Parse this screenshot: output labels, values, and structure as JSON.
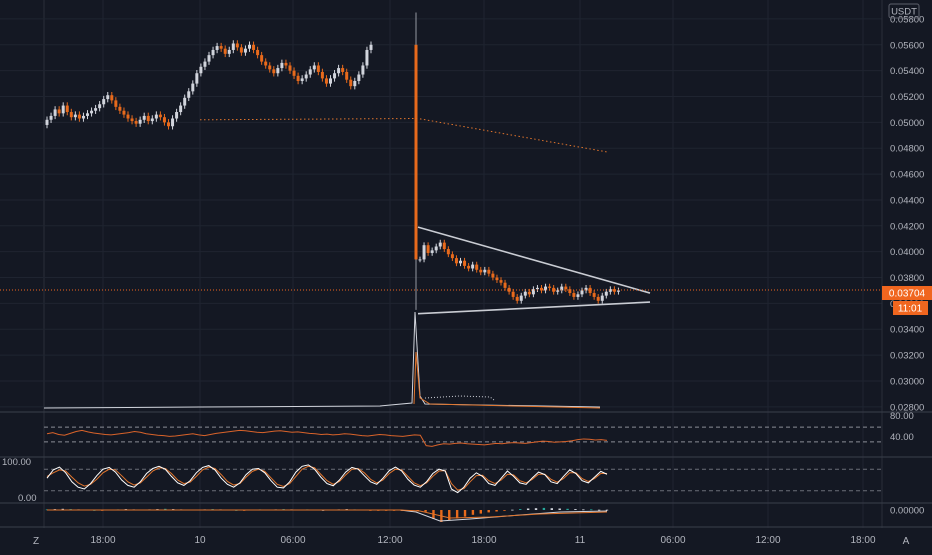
{
  "app": {
    "currency_badge": "USDT",
    "corner_left": "Z",
    "corner_right": "A"
  },
  "colors": {
    "background": "#141823",
    "up_candle": "#d1d4dc",
    "down_candle": "#e86a1c",
    "grid": "#1f2430",
    "triangle": "#c9ccd3",
    "price_tag": "#f0661f",
    "rsi_line": "#d9632a",
    "stoch_k": "#ffffff",
    "stoch_d": "#e0742c"
  },
  "chart_data": [
    {
      "type": "candlestick",
      "ylim": [
        0.0276,
        0.059
      ],
      "price_ticks": [
        "0.05800",
        "0.05600",
        "0.05400",
        "0.05200",
        "0.05000",
        "0.04800",
        "0.04600",
        "0.04400",
        "0.04200",
        "0.04000",
        "0.03800",
        "0.03600",
        "0.03400",
        "0.03200",
        "0.03000",
        "0.02800"
      ],
      "time_labels": [
        "18:00",
        "10",
        "06:00",
        "12:00",
        "18:00",
        "11",
        "06:00",
        "12:00",
        "18:00"
      ],
      "last_price": "0.03704",
      "countdown": "11:01",
      "pre_drop_closes": [
        0.0502,
        0.0505,
        0.051,
        0.0507,
        0.0513,
        0.0508,
        0.0504,
        0.0506,
        0.0503,
        0.0505,
        0.0507,
        0.0509,
        0.0511,
        0.0514,
        0.0518,
        0.0521,
        0.0517,
        0.0512,
        0.0509,
        0.0506,
        0.0503,
        0.0501,
        0.0499,
        0.0502,
        0.0505,
        0.0501,
        0.0503,
        0.0506,
        0.0504,
        0.05,
        0.0497,
        0.0503,
        0.0508,
        0.0513,
        0.0519,
        0.0524,
        0.053,
        0.0538,
        0.0543,
        0.0547,
        0.0552,
        0.0556,
        0.0559,
        0.0557,
        0.0553,
        0.0556,
        0.0561,
        0.0558,
        0.0554,
        0.0557,
        0.056,
        0.0556,
        0.0552,
        0.0547,
        0.0544,
        0.0541,
        0.0538,
        0.0542,
        0.0546,
        0.0544,
        0.054,
        0.0536,
        0.0532,
        0.0534,
        0.0537,
        0.0541,
        0.0544,
        0.0539,
        0.0534,
        0.053,
        0.0534,
        0.0538,
        0.0542,
        0.0539,
        0.0533,
        0.0528,
        0.0532,
        0.0537,
        0.0544,
        0.0556,
        0.056
      ],
      "post_drop_closes": [
        0.0394,
        0.0405,
        0.0399,
        0.0401,
        0.0404,
        0.0407,
        0.0402,
        0.0398,
        0.0395,
        0.0391,
        0.0393,
        0.0389,
        0.0387,
        0.039,
        0.0386,
        0.0384,
        0.0386,
        0.0383,
        0.038,
        0.0378,
        0.0376,
        0.0372,
        0.0369,
        0.0365,
        0.0362,
        0.0366,
        0.0369,
        0.0367,
        0.0371,
        0.0372,
        0.037,
        0.0373,
        0.0372,
        0.0369,
        0.037,
        0.0373,
        0.0371,
        0.0368,
        0.0365,
        0.0367,
        0.037,
        0.0372,
        0.0368,
        0.0365,
        0.0362,
        0.0366,
        0.0369,
        0.0371,
        0.0369,
        0.037
      ],
      "drop": {
        "open": 0.056,
        "low": 0.0355,
        "close": 0.0394
      },
      "triangle": {
        "apex": 0.0368,
        "upper_start": 0.0419,
        "lower_start": 0.0352,
        "lower_apex": 0.0361
      },
      "sma_dotted": {
        "start": 0.0502,
        "mid": 0.0503,
        "end": 0.0477
      }
    },
    {
      "type": "line",
      "name": "rsi",
      "ylim": [
        0,
        100
      ],
      "levels_shown": [
        "80.00",
        "40.00"
      ],
      "levels": [
        70,
        30
      ],
      "values": [
        52,
        55,
        50,
        48,
        53,
        58,
        61,
        57,
        54,
        52,
        50,
        49,
        51,
        53,
        55,
        58,
        56,
        52,
        50,
        48,
        47,
        45,
        46,
        48,
        50,
        52,
        49,
        47,
        50,
        53,
        55,
        57,
        59,
        61,
        60,
        58,
        56,
        55,
        57,
        59,
        60,
        58,
        56,
        57,
        55,
        53,
        52,
        50,
        51,
        49,
        50,
        52,
        51,
        49,
        47,
        46,
        48,
        50,
        49,
        47,
        46,
        45,
        47,
        49,
        48,
        20,
        18,
        22,
        25,
        24,
        26,
        27,
        25,
        24,
        23,
        22,
        24,
        26,
        25,
        27,
        28,
        27,
        26,
        28,
        30,
        32,
        31,
        29,
        30,
        31,
        33,
        36,
        38,
        37,
        35,
        36,
        34
      ]
    },
    {
      "type": "line",
      "name": "stochastic",
      "ylim": [
        0,
        100
      ],
      "ticks": [
        "100.00",
        "0.00"
      ],
      "k": [
        55,
        78,
        86,
        70,
        45,
        30,
        25,
        40,
        62,
        80,
        85,
        72,
        50,
        35,
        30,
        45,
        68,
        82,
        88,
        80,
        60,
        42,
        35,
        48,
        70,
        85,
        90,
        78,
        55,
        38,
        30,
        42,
        65,
        80,
        82,
        70,
        48,
        30,
        28,
        45,
        72,
        88,
        92,
        80,
        58,
        40,
        34,
        50,
        72,
        85,
        80,
        62,
        45,
        38,
        55,
        76,
        86,
        75,
        52,
        36,
        30,
        45,
        68,
        80,
        75,
        25,
        15,
        30,
        55,
        70,
        60,
        40,
        35,
        55,
        75,
        60,
        42,
        38,
        56,
        72,
        65,
        45,
        40,
        60,
        78,
        68,
        48,
        42,
        58,
        74,
        66
      ],
      "d": [
        60,
        70,
        78,
        75,
        58,
        42,
        33,
        38,
        52,
        70,
        80,
        78,
        62,
        45,
        36,
        42,
        58,
        75,
        84,
        82,
        68,
        50,
        40,
        44,
        60,
        78,
        86,
        82,
        65,
        46,
        36,
        40,
        58,
        74,
        80,
        74,
        56,
        38,
        32,
        40,
        60,
        80,
        88,
        84,
        66,
        48,
        38,
        46,
        64,
        80,
        82,
        70,
        52,
        42,
        50,
        68,
        80,
        78,
        60,
        42,
        34,
        42,
        60,
        75,
        76,
        40,
        22,
        26,
        45,
        62,
        63,
        48,
        40,
        50,
        66,
        64,
        48,
        42,
        52,
        66,
        66,
        52,
        44,
        54,
        70,
        70,
        54,
        46,
        54,
        68,
        68
      ]
    },
    {
      "type": "bar",
      "name": "macd",
      "ticks": [
        "0.00000"
      ],
      "histogram": [
        0.2,
        0.3,
        0.4,
        0.3,
        0.2,
        0.1,
        0.0,
        -0.1,
        0.1,
        0.2,
        0.3,
        0.2,
        0.1,
        0.2,
        0.3,
        0.4,
        0.3,
        0.2,
        0.1,
        0.1,
        0.2,
        0.3,
        0.2,
        0.1,
        0.0,
        -0.1,
        0.1,
        0.2,
        0.1,
        0.2,
        0.3,
        0.2,
        0.1,
        0.2,
        0.1,
        0.0,
        0.1,
        0.2,
        0.3,
        0.2,
        0.1,
        -0.1,
        -0.2,
        -0.1,
        -0.2,
        -0.3,
        -0.2,
        -0.4,
        -0.6,
        -3.0,
        -4.0,
        -3.5,
        -2.8,
        -2.2,
        -1.6,
        -1.2,
        -0.8,
        -0.5,
        -0.2,
        0.1,
        0.3,
        0.5,
        0.6,
        0.7,
        0.6,
        0.5,
        0.4,
        0.3,
        0.2,
        0.2,
        0.1,
        0.1
      ]
    }
  ]
}
